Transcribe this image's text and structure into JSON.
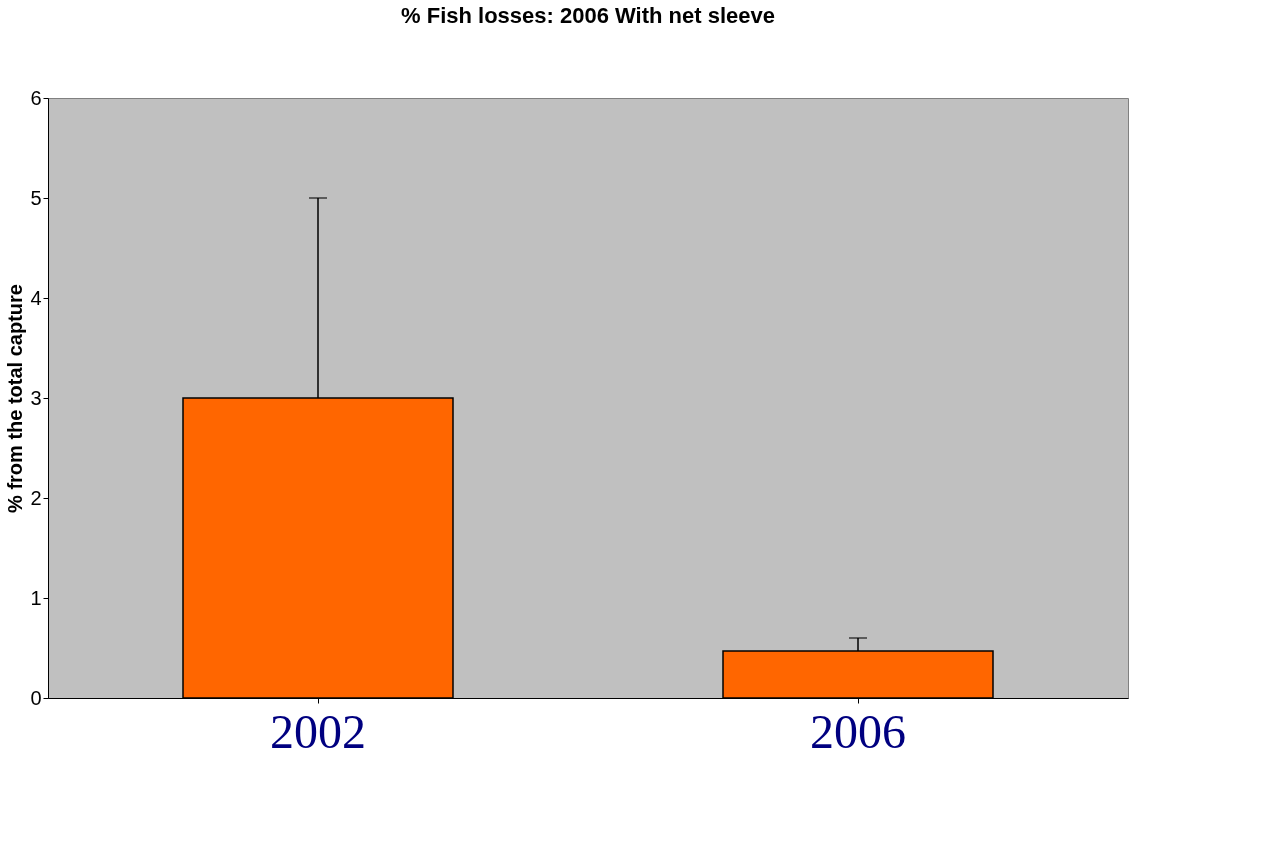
{
  "chart_data": {
    "type": "bar",
    "title": "% Fish losses: 2006  With  net sleeve",
    "ylabel": "% from the total capture",
    "categories": [
      "2002",
      "2006"
    ],
    "values": [
      3,
      0.47
    ],
    "errors": [
      [
        3,
        5
      ],
      [
        0.47,
        0.6
      ]
    ],
    "color": "#ff6600",
    "ylim": [
      0,
      6
    ],
    "yticks": [
      0,
      1,
      2,
      3,
      4,
      5,
      6
    ],
    "grid": false
  }
}
